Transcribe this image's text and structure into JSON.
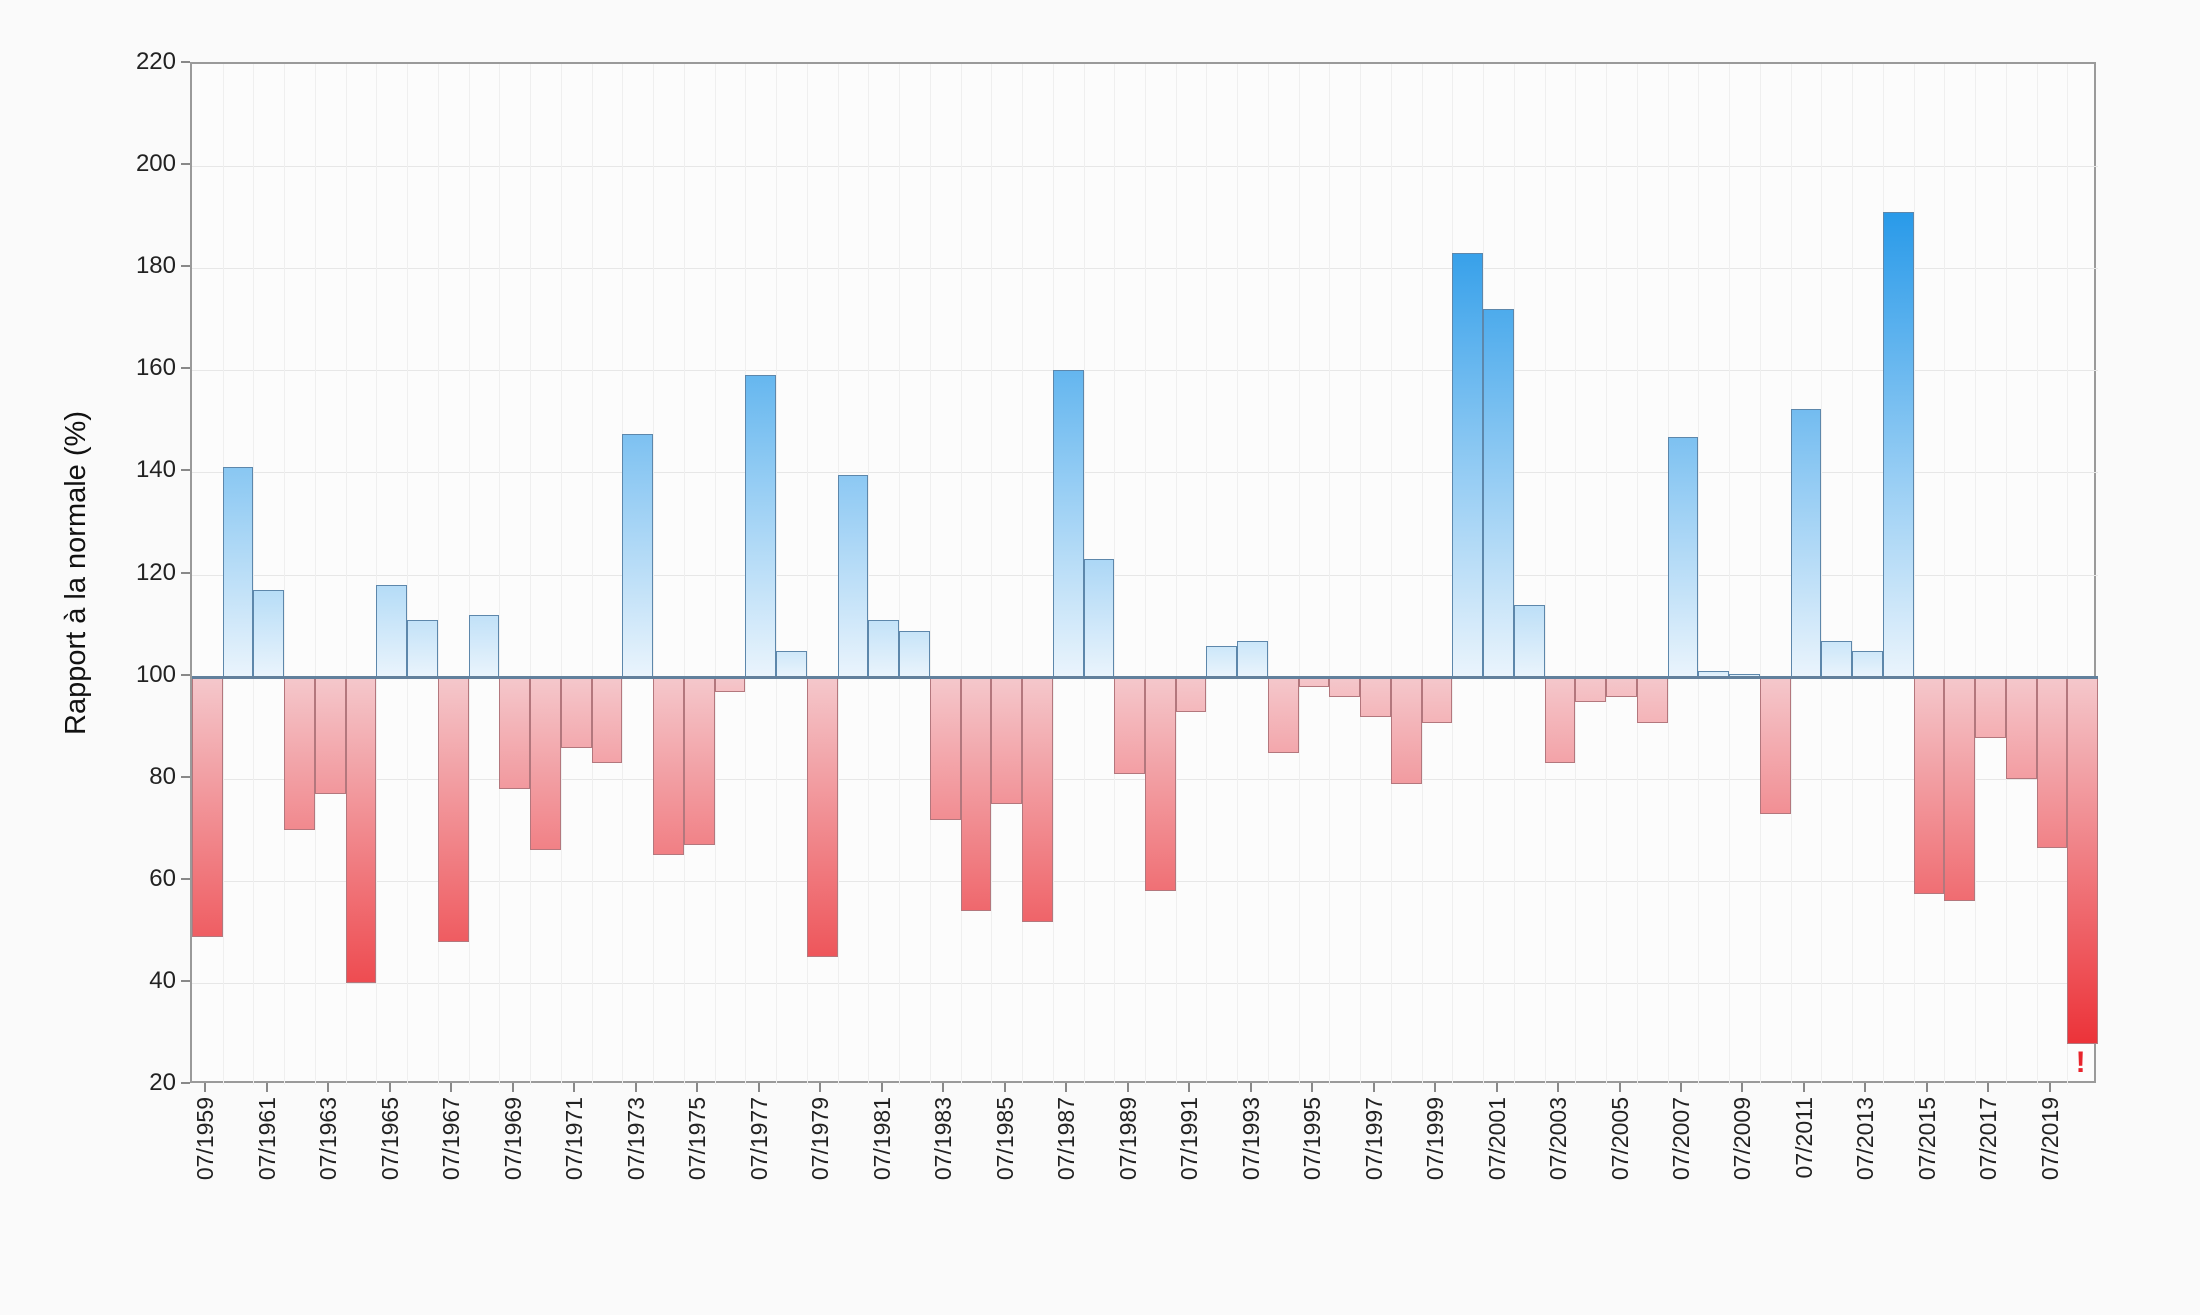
{
  "chart_data": {
    "type": "bar",
    "title": "",
    "ylabel": "Rapport à la normale (%)",
    "ylim": [
      20,
      220
    ],
    "ytick_step": 20,
    "baseline": 100,
    "grid": "on",
    "legend_position": "none",
    "x_label_prefix": "07/",
    "years": [
      1959,
      1960,
      1961,
      1962,
      1963,
      1964,
      1965,
      1966,
      1967,
      1968,
      1969,
      1970,
      1971,
      1972,
      1973,
      1974,
      1975,
      1976,
      1977,
      1978,
      1979,
      1980,
      1981,
      1982,
      1983,
      1984,
      1985,
      1986,
      1987,
      1988,
      1989,
      1990,
      1991,
      1992,
      1993,
      1994,
      1995,
      1996,
      1997,
      1998,
      1999,
      2000,
      2001,
      2002,
      2003,
      2004,
      2005,
      2006,
      2007,
      2008,
      2009,
      2010,
      2011,
      2012,
      2013,
      2014,
      2015,
      2016,
      2017,
      2018,
      2019,
      2020
    ],
    "values": [
      49,
      141,
      117,
      70,
      77,
      40,
      118,
      111,
      48,
      112,
      78,
      66,
      86,
      83,
      147.5,
      65,
      67,
      97,
      159,
      105,
      45,
      139.5,
      111,
      109,
      72,
      54,
      75,
      52,
      160,
      123,
      81,
      58,
      93,
      106,
      107,
      85,
      98,
      96,
      92,
      79,
      91,
      183,
      172,
      114,
      83,
      95,
      96,
      91,
      147,
      101,
      100.5,
      73,
      152.5,
      107,
      105,
      191,
      57.5,
      56,
      88,
      80,
      66.5,
      28
    ],
    "x_axis_labels": [
      "07/1959",
      "07/1961",
      "07/1963",
      "07/1965",
      "07/1967",
      "07/1969",
      "07/1971",
      "07/1973",
      "07/1975",
      "07/1977",
      "07/1979",
      "07/1981",
      "07/1983",
      "07/1985",
      "07/1987",
      "07/1989",
      "07/1991",
      "07/1993",
      "07/1995",
      "07/1997",
      "07/1999",
      "07/2001",
      "07/2003",
      "07/2005",
      "07/2007",
      "07/2009",
      "07/2011",
      "07/2013",
      "07/2015",
      "07/2017",
      "07/2019"
    ],
    "y_axis_labels": [
      "20",
      "40",
      "60",
      "80",
      "100",
      "120",
      "140",
      "160",
      "180",
      "200",
      "220"
    ],
    "warning": {
      "bar_year": 2020,
      "symbol": "!",
      "color": "#e8242c"
    },
    "colors": {
      "blue_strong": "#2196e8",
      "blue_pale": "#d8ecfa",
      "blue_bottom": "#eaf4fc",
      "blue_border": "#5d87ab",
      "red_strong": "#ec2d33",
      "red_pale": "#f5c6ca",
      "red_top": "#f4c8cc",
      "red_border": "#b3777d",
      "baseline_line": "#62809c"
    }
  }
}
